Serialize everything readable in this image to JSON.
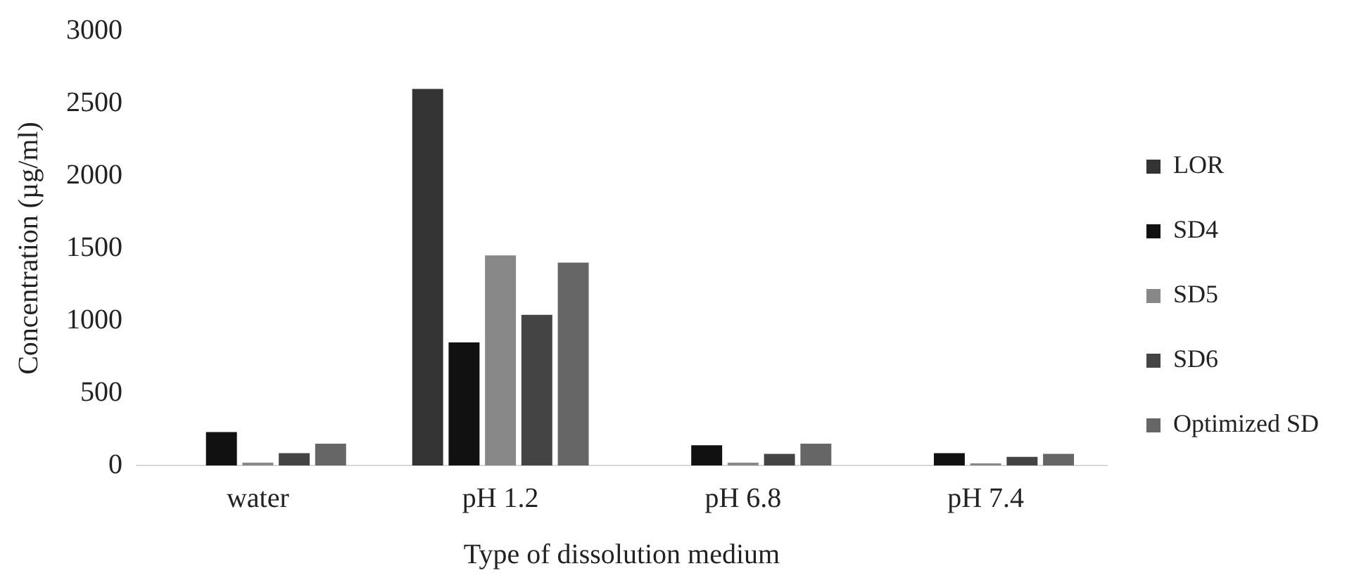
{
  "chart_data": {
    "type": "bar",
    "xlabel": "Type of dissolution medium",
    "ylabel": "Concentration (µg/ml)",
    "categories": [
      "water",
      "pH 1.2",
      "pH 6.8",
      "pH 7.4"
    ],
    "series": [
      {
        "name": "LOR",
        "color": "#333333",
        "values": [
          0,
          2600,
          0,
          0
        ]
      },
      {
        "name": "SD4",
        "color": "#111111",
        "values": [
          230,
          850,
          140,
          85
        ]
      },
      {
        "name": "SD5",
        "color": "#888888",
        "values": [
          20,
          1450,
          20,
          15
        ]
      },
      {
        "name": "SD6",
        "color": "#444444",
        "values": [
          85,
          1040,
          80,
          60
        ]
      },
      {
        "name": "Optimized SD",
        "color": "#666666",
        "values": [
          150,
          1400,
          150,
          80
        ]
      }
    ],
    "ylim": [
      0,
      3000
    ],
    "yticks": [
      0,
      500,
      1000,
      1500,
      2000,
      2500,
      3000
    ],
    "grid": false,
    "legend": "right"
  }
}
